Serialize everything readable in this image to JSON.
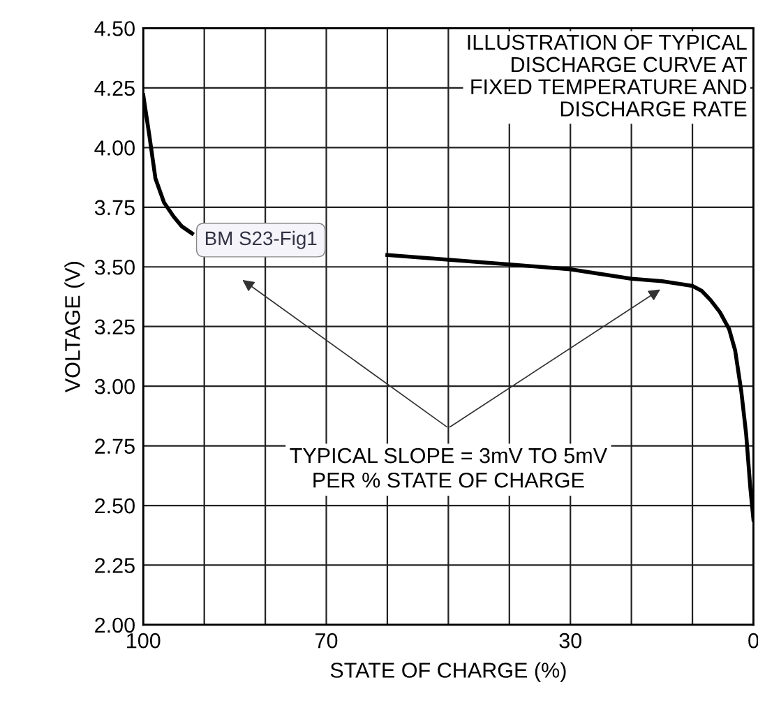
{
  "chart_data": {
    "type": "line",
    "title": "ILLUSTRATION OF TYPICAL\nDISCHARGE CURVE AT\nFIXED TEMPERATURE AND\nDISCHARGE RATE",
    "xlabel": "STATE OF CHARGE (%)",
    "ylabel": "VOLTAGE (V)",
    "x": [
      100,
      99,
      98,
      96.6,
      95,
      93.7,
      92,
      90.3,
      88,
      85.7,
      80,
      70,
      60,
      50,
      40,
      30,
      25,
      20,
      15,
      10,
      8.5,
      7,
      5.5,
      4,
      3,
      2,
      1.2,
      0.5,
      0
    ],
    "series": [
      {
        "color": "#000000",
        "values": [
          4.22,
          4.05,
          3.87,
          3.77,
          3.71,
          3.67,
          3.64,
          null,
          null,
          null,
          null,
          null,
          3.55,
          3.53,
          3.51,
          3.49,
          3.47,
          3.45,
          3.44,
          3.42,
          3.4,
          3.36,
          3.31,
          3.24,
          3.15,
          2.98,
          2.8,
          2.57,
          2.44
        ]
      }
    ],
    "xlim": [
      100,
      0
    ],
    "ylim": [
      2.0,
      4.5
    ],
    "xticks": [
      100,
      {
        "value": 90,
        "label": null
      },
      {
        "value": 80,
        "label": null
      },
      70,
      {
        "value": 60,
        "label": null
      },
      {
        "value": 50,
        "label": null
      },
      {
        "value": 40,
        "label": null
      },
      30,
      {
        "value": 20,
        "label": null
      },
      {
        "value": 10,
        "label": null
      },
      0
    ],
    "yticks": [
      {
        "value": 2.0,
        "label": "2.00"
      },
      {
        "value": 2.25,
        "label": "2.25"
      },
      {
        "value": 2.5,
        "label": "2.50"
      },
      {
        "value": 2.75,
        "label": "2.75"
      },
      {
        "value": 3.0,
        "label": "3.00"
      },
      {
        "value": 3.25,
        "label": "3.25"
      },
      {
        "value": 3.5,
        "label": "3.50"
      },
      {
        "value": 3.75,
        "label": "3.75"
      },
      {
        "value": 4.0,
        "label": "4.00"
      },
      {
        "value": 4.25,
        "label": "4.25"
      },
      {
        "value": 4.5,
        "label": "4.50"
      }
    ],
    "grid": true,
    "marker": "none",
    "line_style": "solid",
    "annotations": [
      "TYPICAL SLOPE = 3mV TO 5mV\nPER % STATE OF CHARGE",
      "BM S23-Fig1"
    ]
  }
}
